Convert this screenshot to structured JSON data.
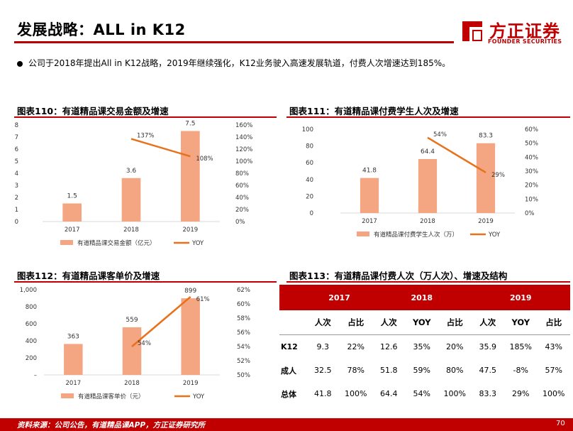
{
  "header": {
    "title": "发展战略：ALL in K12",
    "logo_cn": "方正证券",
    "logo_en": "FOUNDER SECURITIES"
  },
  "bullet": "公司于2018年提出All in K12战略，2019年继续强化，K12业务驶入高速发展轨道，付费人次增速达到185%。",
  "chart_titles": {
    "c110": "图表110：有道精品课交易金额及增速",
    "c111": "图表111：有道精品课付费学生人次及增速",
    "c112": "图表112：有道精品课客单价及增速",
    "c113": "图表113：有道精品课付费人次（万人次）、增速及结构"
  },
  "chart_data": [
    {
      "id": "c110",
      "type": "bar",
      "categories": [
        "2017",
        "2018",
        "2019"
      ],
      "series": [
        {
          "name": "有道精品课交易金额（亿元）",
          "type": "bar",
          "axis": "left",
          "values": [
            1.5,
            3.6,
            7.5
          ],
          "labels": [
            "1.5",
            "3.6",
            "7.5"
          ],
          "color": "#f4a582"
        },
        {
          "name": "YOY",
          "type": "line",
          "axis": "right",
          "values": [
            null,
            137,
            108
          ],
          "labels": [
            "",
            "137%",
            "108%"
          ],
          "color": "#e8711c"
        }
      ],
      "left_axis": {
        "min": 0,
        "max": 8,
        "ticks": [
          "0",
          "1",
          "2",
          "3",
          "4",
          "5",
          "6",
          "7",
          "8"
        ]
      },
      "right_axis": {
        "min": 0,
        "max": 160,
        "ticks": [
          "0%",
          "20%",
          "40%",
          "60%",
          "80%",
          "100%",
          "120%",
          "140%",
          "160%"
        ]
      },
      "legend": "bottom"
    },
    {
      "id": "c111",
      "type": "bar",
      "categories": [
        "2017",
        "2018",
        "2019"
      ],
      "series": [
        {
          "name": "有道精品课付费学生人次（万）",
          "type": "bar",
          "axis": "left",
          "values": [
            41.8,
            64.4,
            83.3
          ],
          "labels": [
            "41.8",
            "64.4",
            "83.3"
          ],
          "color": "#f4a582"
        },
        {
          "name": "YOY",
          "type": "line",
          "axis": "right",
          "values": [
            null,
            54,
            29
          ],
          "labels": [
            "",
            "54%",
            "29%"
          ],
          "color": "#e8711c"
        }
      ],
      "left_axis": {
        "min": 0,
        "max": 100,
        "ticks": [
          "0",
          "20",
          "40",
          "60",
          "80",
          "100"
        ]
      },
      "right_axis": {
        "min": 0,
        "max": 60,
        "ticks": [
          "0%",
          "10%",
          "20%",
          "30%",
          "40%",
          "50%",
          "60%"
        ]
      },
      "legend": "bottom"
    },
    {
      "id": "c112",
      "type": "bar",
      "categories": [
        "2017",
        "2018",
        "2019"
      ],
      "series": [
        {
          "name": "有道精品课客单价（元）",
          "type": "bar",
          "axis": "left",
          "values": [
            363,
            559,
            899
          ],
          "labels": [
            "363",
            "559",
            "899"
          ],
          "color": "#f4a582"
        },
        {
          "name": "YOY",
          "type": "line",
          "axis": "right",
          "values": [
            null,
            54,
            61
          ],
          "labels": [
            "",
            "54%",
            "61%"
          ],
          "color": "#e8711c"
        }
      ],
      "left_axis": {
        "min": 0,
        "max": 1000,
        "ticks": [
          "–",
          "200",
          "400",
          "600",
          "800",
          "1,000"
        ]
      },
      "right_axis": {
        "min": 50,
        "max": 62,
        "ticks": [
          "50%",
          "52%",
          "54%",
          "56%",
          "58%",
          "60%",
          "62%"
        ]
      },
      "legend": "bottom"
    },
    {
      "id": "c113",
      "type": "table",
      "years": [
        "2017",
        "2018",
        "2019"
      ],
      "columns": [
        "人次",
        "占比",
        "人次",
        "YOY",
        "占比",
        "人次",
        "YOY",
        "占比"
      ],
      "rows": [
        {
          "label": "K12",
          "values": [
            "9.3",
            "22%",
            "12.6",
            "35%",
            "20%",
            "35.9",
            "185%",
            "43%"
          ]
        },
        {
          "label": "成人",
          "values": [
            "32.5",
            "78%",
            "51.8",
            "59%",
            "80%",
            "47.5",
            "-8%",
            "57%"
          ]
        },
        {
          "label": "总体",
          "values": [
            "41.8",
            "100%",
            "64.4",
            "54%",
            "100%",
            "83.3",
            "29%",
            "100%"
          ]
        }
      ]
    }
  ],
  "footer": {
    "source": "资料来源：公司公告，有道精品课APP，方正证券研究所",
    "page": "70"
  }
}
